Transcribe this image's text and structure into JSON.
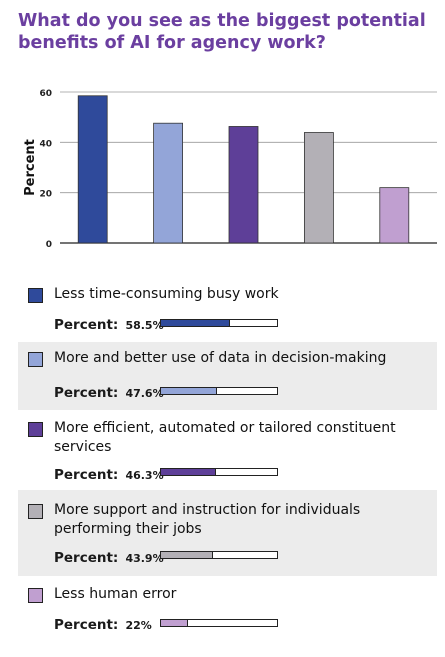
{
  "title": "What do you see as the biggest potential benefits of AI for agency work?",
  "chart_data": {
    "type": "bar",
    "ylabel": "Percent",
    "ylim": [
      0,
      60
    ],
    "yticks": [
      "0",
      "20",
      "40",
      "60"
    ],
    "grid": true,
    "categories": [
      "Less time-consuming busy work",
      "More and better use of data in decision-making",
      "More efficient, automated or tailored constituent services",
      "More support and instruction for individuals performing their jobs",
      "Less human error"
    ],
    "values": [
      58.5,
      47.6,
      46.3,
      43.9,
      22
    ],
    "colors": [
      "#2f4a9b",
      "#93a5d8",
      "#5e3f98",
      "#b3b0b6",
      "#c09fd0"
    ]
  },
  "legend": {
    "percent_label": "Percent:",
    "items": [
      {
        "label": "Less time-consuming busy work",
        "value_text": "58.5%",
        "value": 58.5,
        "color": "#2f4a9b"
      },
      {
        "label": "More and better use of data in decision-making",
        "value_text": "47.6%",
        "value": 47.6,
        "color": "#93a5d8"
      },
      {
        "label": "More efficient, automated or tailored constituent services",
        "value_text": "46.3%",
        "value": 46.3,
        "color": "#5e3f98"
      },
      {
        "label": "More support and instruction for individuals performing their jobs",
        "value_text": "43.9%",
        "value": 43.9,
        "color": "#b3b0b6"
      },
      {
        "label": "Less human error",
        "value_text": "22%",
        "value": 22,
        "color": "#c09fd0"
      }
    ]
  }
}
